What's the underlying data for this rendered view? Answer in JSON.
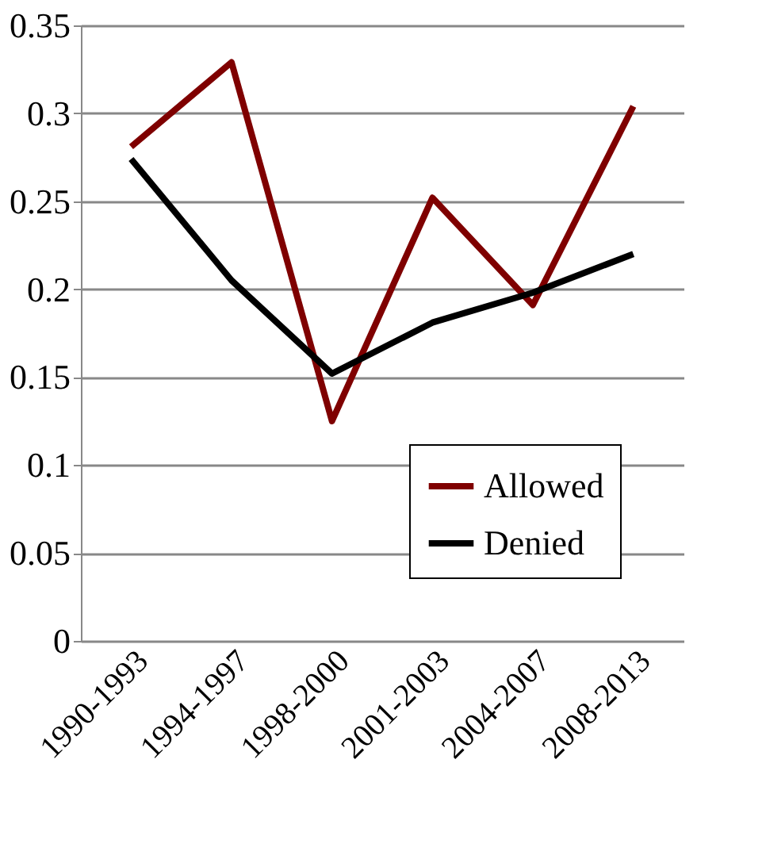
{
  "chart_data": {
    "type": "line",
    "categories": [
      "1990-1993",
      "1994-1997",
      "1998-2000",
      "2001-2003",
      "2004-2007",
      "2008-2013"
    ],
    "series": [
      {
        "name": "Allowed",
        "color": "#7f0000",
        "values": [
          0.281,
          0.329,
          0.125,
          0.252,
          0.191,
          0.304
        ]
      },
      {
        "name": "Denied",
        "color": "#000000",
        "values": [
          0.274,
          0.205,
          0.152,
          0.181,
          0.198,
          0.22
        ]
      }
    ],
    "ylim": [
      0,
      0.35
    ],
    "yticks": [
      0,
      0.05,
      0.1,
      0.15,
      0.2,
      0.25,
      0.3,
      0.35
    ],
    "grid": "y",
    "legend": "bottom right",
    "marker": "none",
    "line_style": "solid"
  }
}
